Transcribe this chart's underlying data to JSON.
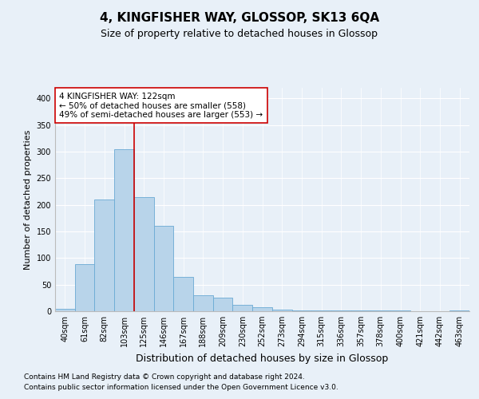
{
  "title": "4, KINGFISHER WAY, GLOSSOP, SK13 6QA",
  "subtitle": "Size of property relative to detached houses in Glossop",
  "xlabel": "Distribution of detached houses by size in Glossop",
  "ylabel": "Number of detached properties",
  "footer_line1": "Contains HM Land Registry data © Crown copyright and database right 2024.",
  "footer_line2": "Contains public sector information licensed under the Open Government Licence v3.0.",
  "categories": [
    "40sqm",
    "61sqm",
    "82sqm",
    "103sqm",
    "125sqm",
    "146sqm",
    "167sqm",
    "188sqm",
    "209sqm",
    "230sqm",
    "252sqm",
    "273sqm",
    "294sqm",
    "315sqm",
    "336sqm",
    "357sqm",
    "378sqm",
    "400sqm",
    "421sqm",
    "442sqm",
    "463sqm"
  ],
  "values": [
    5,
    88,
    210,
    305,
    215,
    160,
    65,
    30,
    25,
    12,
    8,
    3,
    2,
    1,
    1,
    1,
    1,
    1,
    0,
    0,
    1
  ],
  "bar_color": "#b8d4ea",
  "bar_edge_color": "#6aaad4",
  "bar_edge_linewidth": 0.6,
  "background_color": "#e8f0f8",
  "plot_background_color": "#e8f0f8",
  "grid_color": "#ffffff",
  "red_line_x": 3.5,
  "red_line_color": "#cc0000",
  "annotation_box_text_line1": "4 KINGFISHER WAY: 122sqm",
  "annotation_box_text_line2": "← 50% of detached houses are smaller (558)",
  "annotation_box_text_line3": "49% of semi-detached houses are larger (553) →",
  "ylim": [
    0,
    420
  ],
  "yticks": [
    0,
    50,
    100,
    150,
    200,
    250,
    300,
    350,
    400
  ],
  "title_fontsize": 11,
  "subtitle_fontsize": 9,
  "xlabel_fontsize": 9,
  "ylabel_fontsize": 8,
  "tick_fontsize": 7,
  "annotation_fontsize": 7.5,
  "footer_fontsize": 6.5
}
